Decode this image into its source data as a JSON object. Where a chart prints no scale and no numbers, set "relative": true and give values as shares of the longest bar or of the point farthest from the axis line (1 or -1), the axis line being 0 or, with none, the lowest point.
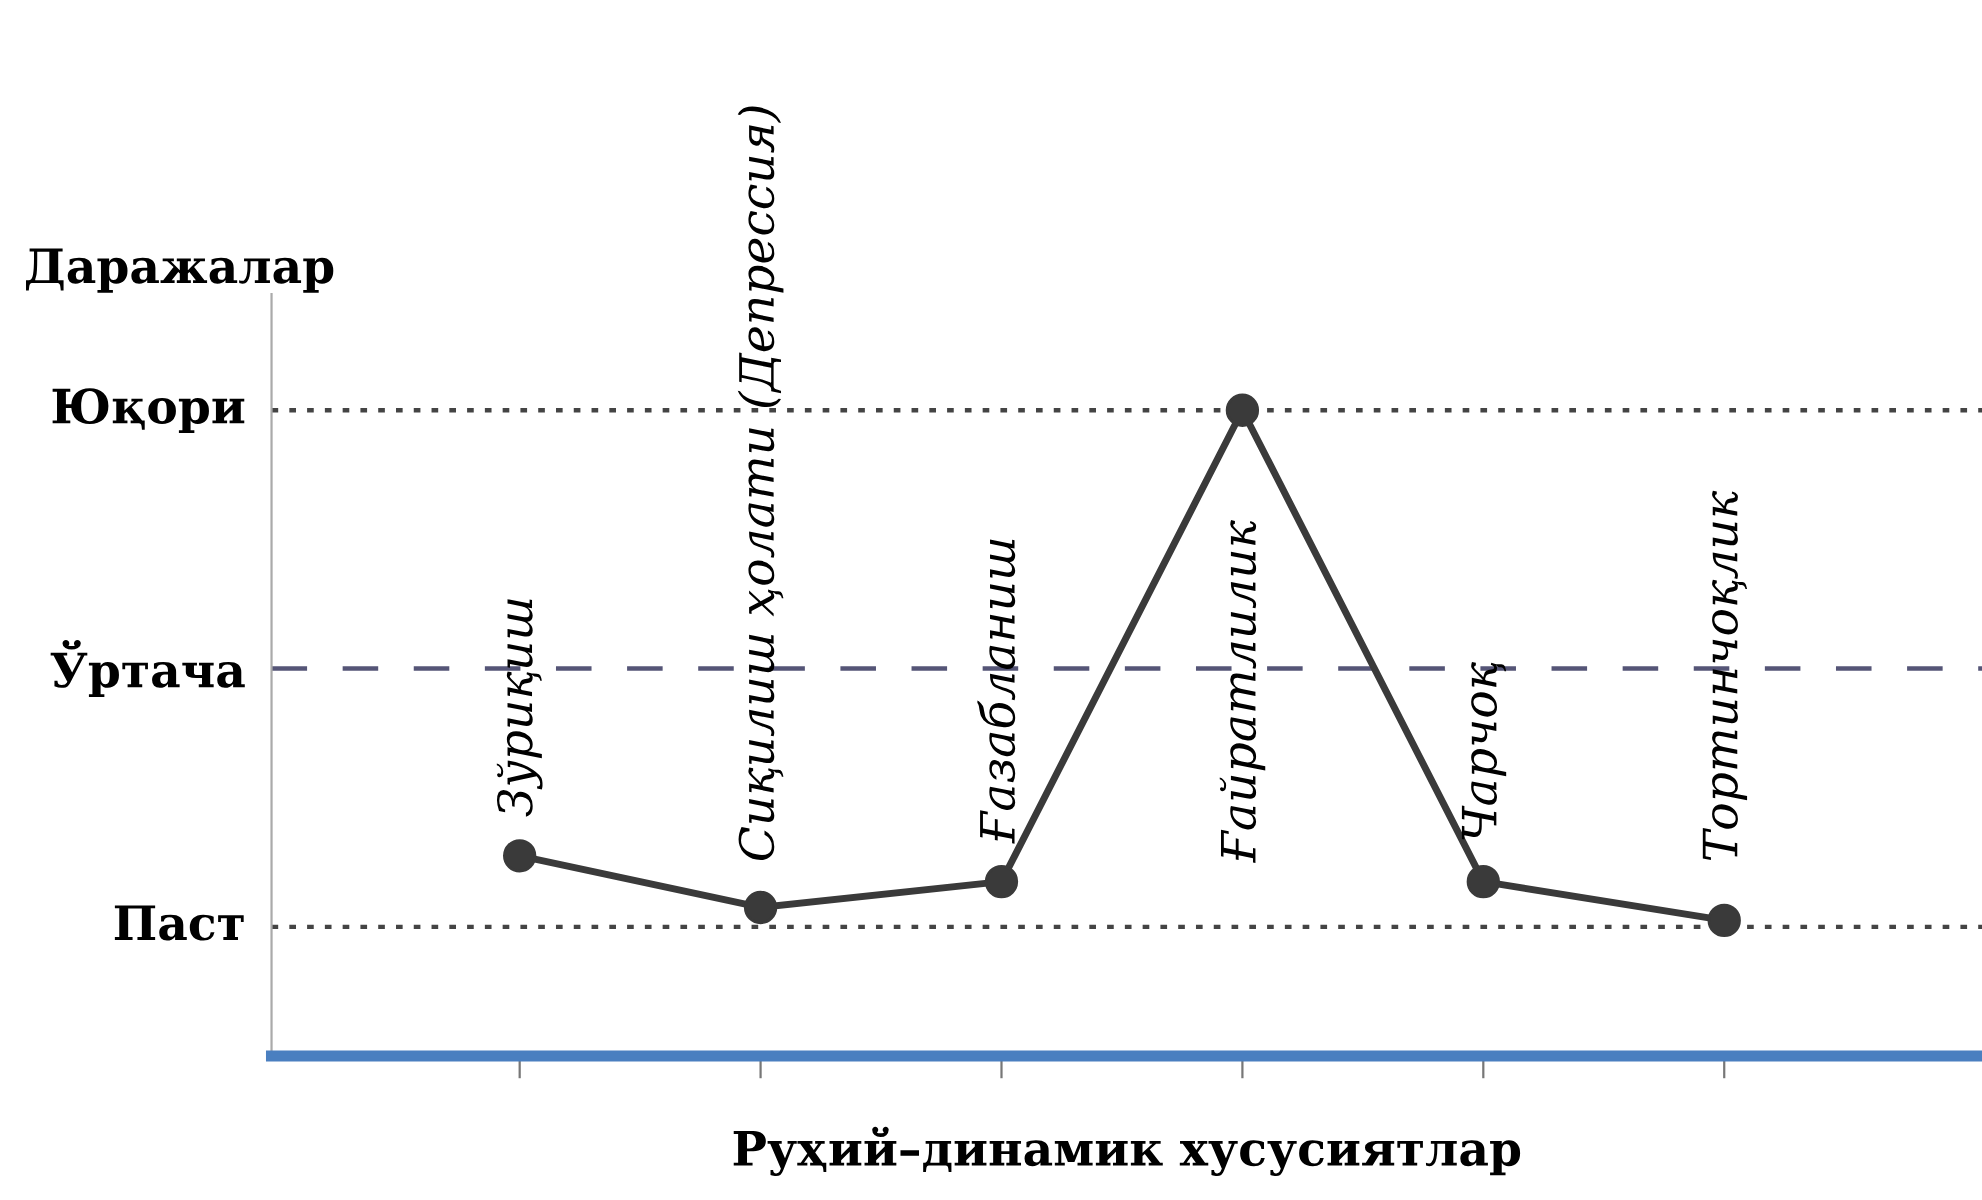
{
  "chart_data": {
    "type": "line",
    "ylabel": "Даражалар",
    "xlabel": "Руҳий–динамик хусусиятлар",
    "categories": [
      "Зўриқиш",
      "Сиқилиш ҳолати (Депрессия)",
      "Ғазабланиш",
      "Ғайратлилик",
      "Чарчоқ",
      "Тортинчоқлик"
    ],
    "series": [
      {
        "color": "#3a3a3a",
        "values": [
          0.31,
          0.23,
          0.27,
          1.0,
          0.27,
          0.21
        ]
      }
    ],
    "relative": true,
    "ref_lines": [
      {
        "axis": "y",
        "value": 1.0,
        "label": "Юқори",
        "line_style": "dotted",
        "color": "#444444"
      },
      {
        "axis": "y",
        "value": 0.6,
        "label": "Ўртача",
        "line_style": "dashed",
        "color": "#555577"
      },
      {
        "axis": "y",
        "value": 0.2,
        "label": "Паст",
        "line_style": "dotted",
        "color": "#444444"
      }
    ],
    "marker": "circle",
    "line_style": "solid",
    "grid": false,
    "legend": false
  }
}
